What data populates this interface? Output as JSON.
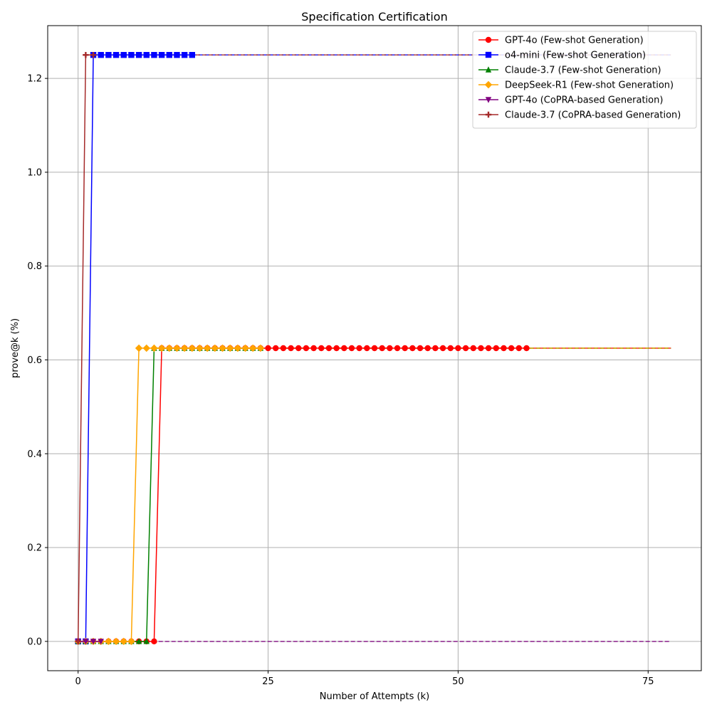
{
  "chart_data": {
    "type": "line",
    "title": "Specification Certification",
    "xlabel": "Number of Attempts (k)",
    "ylabel": "prove@k (%)",
    "xlim": [
      -4,
      82
    ],
    "ylim": [
      -0.0625,
      1.3125
    ],
    "xticks": [
      0,
      25,
      50,
      75
    ],
    "yticks": [
      0.0,
      0.2,
      0.4,
      0.6,
      0.8,
      1.0,
      1.2
    ],
    "xtick_labels": [
      "0",
      "25",
      "50",
      "75"
    ],
    "ytick_labels": [
      "0.0",
      "0.2",
      "0.4",
      "0.6",
      "0.8",
      "1.0",
      "1.2"
    ],
    "grid": true,
    "legend_position": "top-right",
    "x_max_extension": 78,
    "series": [
      {
        "name": "GPT-4o (Few-shot Generation)",
        "color": "#ff0000",
        "marker": "circle",
        "points": [
          [
            0,
            0
          ],
          [
            1,
            0
          ],
          [
            2,
            0
          ],
          [
            3,
            0
          ],
          [
            4,
            0
          ],
          [
            5,
            0
          ],
          [
            6,
            0
          ],
          [
            7,
            0
          ],
          [
            8,
            0
          ],
          [
            9,
            0
          ],
          [
            10,
            0
          ],
          [
            11,
            0.625
          ],
          [
            12,
            0.625
          ],
          [
            13,
            0.625
          ],
          [
            14,
            0.625
          ],
          [
            15,
            0.625
          ],
          [
            16,
            0.625
          ],
          [
            17,
            0.625
          ],
          [
            18,
            0.625
          ],
          [
            19,
            0.625
          ],
          [
            20,
            0.625
          ],
          [
            21,
            0.625
          ],
          [
            22,
            0.625
          ],
          [
            23,
            0.625
          ],
          [
            24,
            0.625
          ],
          [
            25,
            0.625
          ],
          [
            26,
            0.625
          ],
          [
            27,
            0.625
          ],
          [
            28,
            0.625
          ],
          [
            29,
            0.625
          ],
          [
            30,
            0.625
          ],
          [
            31,
            0.625
          ],
          [
            32,
            0.625
          ],
          [
            33,
            0.625
          ],
          [
            34,
            0.625
          ],
          [
            35,
            0.625
          ],
          [
            36,
            0.625
          ],
          [
            37,
            0.625
          ],
          [
            38,
            0.625
          ],
          [
            39,
            0.625
          ],
          [
            40,
            0.625
          ],
          [
            41,
            0.625
          ],
          [
            42,
            0.625
          ],
          [
            43,
            0.625
          ],
          [
            44,
            0.625
          ],
          [
            45,
            0.625
          ],
          [
            46,
            0.625
          ],
          [
            47,
            0.625
          ],
          [
            48,
            0.625
          ],
          [
            49,
            0.625
          ],
          [
            50,
            0.625
          ],
          [
            51,
            0.625
          ],
          [
            52,
            0.625
          ],
          [
            53,
            0.625
          ],
          [
            54,
            0.625
          ],
          [
            55,
            0.625
          ],
          [
            56,
            0.625
          ],
          [
            57,
            0.625
          ],
          [
            58,
            0.625
          ],
          [
            59,
            0.625
          ]
        ],
        "extension_y": 0.625
      },
      {
        "name": "o4-mini (Few-shot Generation)",
        "color": "#0000ff",
        "marker": "square",
        "points": [
          [
            0,
            0
          ],
          [
            1,
            0
          ],
          [
            2,
            1.25
          ],
          [
            3,
            1.25
          ],
          [
            4,
            1.25
          ],
          [
            5,
            1.25
          ],
          [
            6,
            1.25
          ],
          [
            7,
            1.25
          ],
          [
            8,
            1.25
          ],
          [
            9,
            1.25
          ],
          [
            10,
            1.25
          ],
          [
            11,
            1.25
          ],
          [
            12,
            1.25
          ],
          [
            13,
            1.25
          ],
          [
            14,
            1.25
          ],
          [
            15,
            1.25
          ]
        ],
        "extension_y": 1.25
      },
      {
        "name": "Claude-3.7 (Few-shot Generation)",
        "color": "#008000",
        "marker": "triangle-up",
        "points": [
          [
            0,
            0
          ],
          [
            1,
            0
          ],
          [
            2,
            0
          ],
          [
            3,
            0
          ],
          [
            4,
            0
          ],
          [
            5,
            0
          ],
          [
            6,
            0
          ],
          [
            7,
            0
          ],
          [
            8,
            0
          ],
          [
            9,
            0
          ],
          [
            10,
            0.625
          ],
          [
            11,
            0.625
          ],
          [
            12,
            0.625
          ],
          [
            13,
            0.625
          ],
          [
            14,
            0.625
          ],
          [
            15,
            0.625
          ],
          [
            16,
            0.625
          ],
          [
            17,
            0.625
          ],
          [
            18,
            0.625
          ],
          [
            19,
            0.625
          ],
          [
            20,
            0.625
          ],
          [
            21,
            0.625
          ],
          [
            22,
            0.625
          ],
          [
            23,
            0.625
          ],
          [
            24,
            0.625
          ]
        ],
        "extension_y": 0.625
      },
      {
        "name": "DeepSeek-R1 (Few-shot Generation)",
        "color": "#ffa500",
        "marker": "diamond",
        "points": [
          [
            0,
            0
          ],
          [
            1,
            0
          ],
          [
            2,
            0
          ],
          [
            3,
            0
          ],
          [
            4,
            0
          ],
          [
            5,
            0
          ],
          [
            6,
            0
          ],
          [
            7,
            0
          ],
          [
            8,
            0.625
          ],
          [
            9,
            0.625
          ],
          [
            10,
            0.625
          ],
          [
            11,
            0.625
          ],
          [
            12,
            0.625
          ],
          [
            13,
            0.625
          ],
          [
            14,
            0.625
          ],
          [
            15,
            0.625
          ],
          [
            16,
            0.625
          ],
          [
            17,
            0.625
          ],
          [
            18,
            0.625
          ],
          [
            19,
            0.625
          ],
          [
            20,
            0.625
          ],
          [
            21,
            0.625
          ],
          [
            22,
            0.625
          ],
          [
            23,
            0.625
          ],
          [
            24,
            0.625
          ]
        ],
        "extension_y": 0.625
      },
      {
        "name": "GPT-4o (CoPRA-based Generation)",
        "color": "#800080",
        "marker": "triangle-down",
        "points": [
          [
            0,
            0
          ],
          [
            1,
            0
          ],
          [
            2,
            0
          ],
          [
            3,
            0
          ]
        ],
        "extension_y": 0
      },
      {
        "name": "Claude-3.7 (CoPRA-based Generation)",
        "color": "#a52a2a",
        "marker": "plus",
        "points": [
          [
            0,
            0
          ],
          [
            1,
            1.25
          ],
          [
            2,
            1.25
          ]
        ],
        "extension_y": 1.25
      }
    ]
  }
}
